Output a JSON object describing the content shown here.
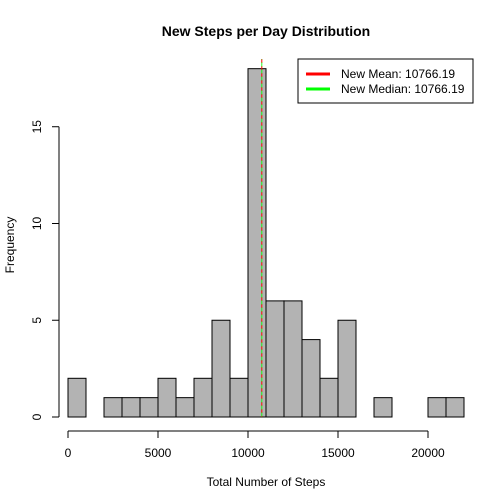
{
  "chart_data": {
    "type": "bar",
    "title": "New Steps per Day Distribution",
    "xlabel": "Total Number of Steps",
    "ylabel": "Frequency",
    "xlim": [
      -500,
      22500
    ],
    "ylim": [
      0,
      18.5
    ],
    "x_ticks": [
      0,
      5000,
      10000,
      15000,
      20000
    ],
    "x_tick_labels": [
      "0",
      "5000",
      "10000",
      "15000",
      "20000"
    ],
    "y_ticks": [
      0,
      5,
      10,
      15
    ],
    "y_tick_labels": [
      "0",
      "5",
      "10",
      "15"
    ],
    "bin_width": 1000,
    "bin_edges": [
      0,
      1000,
      2000,
      3000,
      4000,
      5000,
      6000,
      7000,
      8000,
      9000,
      10000,
      11000,
      12000,
      13000,
      14000,
      15000,
      16000,
      17000,
      18000,
      19000,
      20000,
      21000,
      22000
    ],
    "values": [
      2,
      0,
      1,
      1,
      1,
      2,
      1,
      2,
      5,
      2,
      18,
      6,
      6,
      4,
      2,
      5,
      0,
      1,
      0,
      0,
      1,
      1
    ],
    "bar_color": "#b3b3b3",
    "mean_line": {
      "value": 10766.19,
      "color": "#ff0000",
      "label": "New Mean:  10766.19"
    },
    "median_line": {
      "value": 10766.19,
      "color": "#00ff00",
      "label": "New Median:  10766.19"
    },
    "legend_position": "top-right",
    "grid": false
  }
}
